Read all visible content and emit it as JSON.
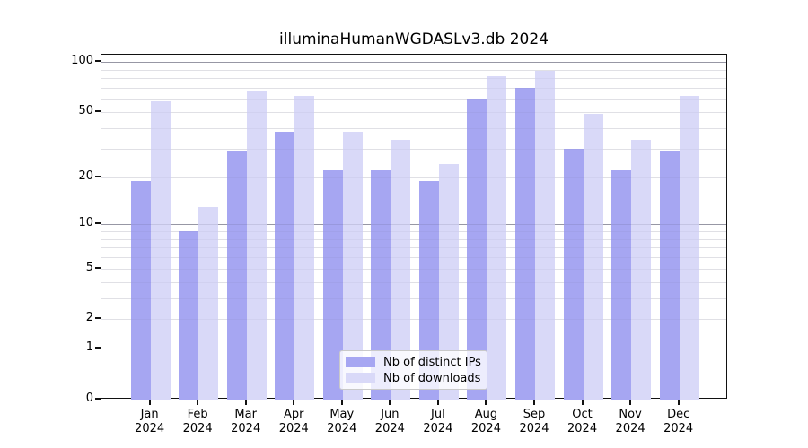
{
  "chart_data": {
    "type": "bar",
    "title": "illuminaHumanWGDASLv3.db 2024",
    "year_label": "2024",
    "months": [
      "Jan",
      "Feb",
      "Mar",
      "Apr",
      "May",
      "Jun",
      "Jul",
      "Aug",
      "Sep",
      "Oct",
      "Nov",
      "Dec"
    ],
    "series": [
      {
        "name": "Nb of distinct IPs",
        "color": "#a6a6f2",
        "values": [
          19,
          9,
          29,
          38,
          22,
          22,
          19,
          60,
          70,
          30,
          22,
          29
        ]
      },
      {
        "name": "Nb of downloads",
        "color": "#d9d9f8",
        "values": [
          58,
          13,
          67,
          63,
          38,
          34,
          24,
          82,
          89,
          49,
          34,
          63
        ]
      }
    ],
    "y_scale": "log1p",
    "ylim": [
      0,
      100
    ],
    "y_ticks": [
      0,
      1,
      2,
      5,
      10,
      20,
      50,
      100
    ],
    "y_major_gridlines": [
      1,
      10,
      100
    ],
    "y_minor_gridlines": [
      3,
      4,
      6,
      7,
      8,
      9,
      30,
      40,
      60,
      70,
      80,
      90
    ],
    "grid": true,
    "legend_position": "bottom-center-inside",
    "xlabel": "",
    "ylabel": ""
  }
}
